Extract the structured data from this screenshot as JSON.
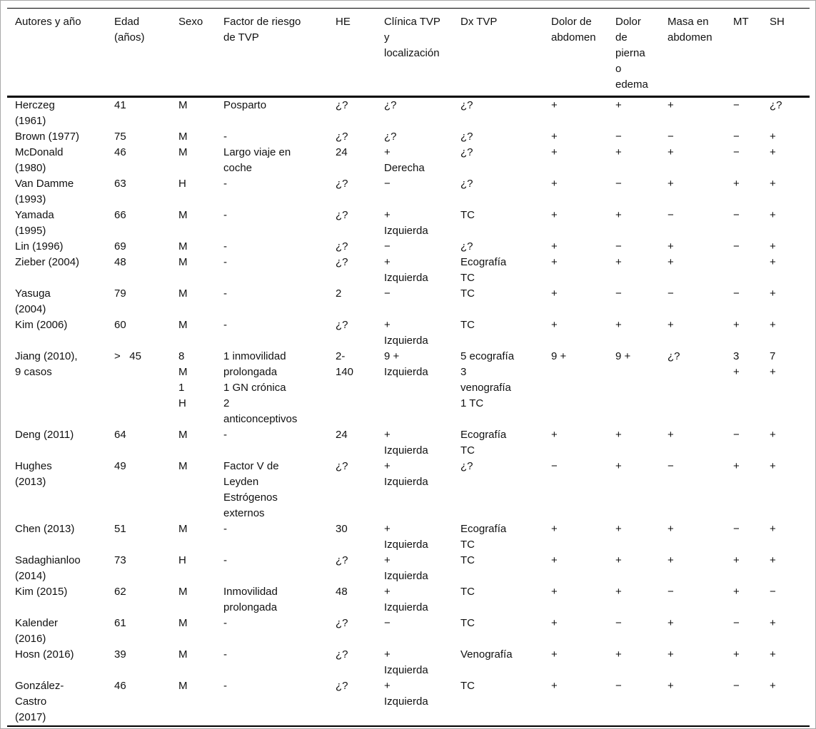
{
  "page": {
    "background_color": "#ffffff",
    "outer_border_color": "#a9a9a9",
    "rule_color": "#000000",
    "text_color": "#111111"
  },
  "table": {
    "columns": [
      {
        "label": "Autores y año"
      },
      {
        "label": "Edad\n(años)"
      },
      {
        "label": "Sexo"
      },
      {
        "label": "Factor de riesgo\nde TVP"
      },
      {
        "label": "HE"
      },
      {
        "label": "Clínica TVP\ny\nlocalización"
      },
      {
        "label": "Dx TVP"
      },
      {
        "label": "Dolor de\nabdomen"
      },
      {
        "label": "Dolor\nde\npierna\no\nedema"
      },
      {
        "label": "Masa en\nabdomen"
      },
      {
        "label": "MT"
      },
      {
        "label": "SH"
      }
    ],
    "rows": [
      {
        "cells": [
          "Herczeg\n(1961)",
          "41",
          "M",
          "Posparto",
          "¿?",
          "¿?",
          "¿?",
          "+",
          "+",
          "+",
          "−",
          "¿?"
        ]
      },
      {
        "cells": [
          "Brown (1977)",
          "75",
          "M",
          "-",
          "¿?",
          "¿?",
          "¿?",
          "+",
          "−",
          "−",
          "−",
          "+"
        ]
      },
      {
        "cells": [
          "McDonald\n(1980)",
          "46",
          "M",
          "Largo viaje en\ncoche",
          "24",
          "+\nDerecha",
          "¿?",
          "+",
          "+",
          "+",
          "−",
          "+"
        ]
      },
      {
        "cells": [
          "Van Damme\n(1993)",
          "63",
          "H",
          "-",
          "¿?",
          "−",
          "¿?",
          "+",
          "−",
          "+",
          "+",
          "+"
        ]
      },
      {
        "cells": [
          "Yamada\n(1995)",
          "66",
          "M",
          "-",
          "¿?",
          "+\nIzquierda",
          "TC",
          "+",
          "+",
          "−",
          "−",
          "+"
        ]
      },
      {
        "cells": [
          "Lin (1996)",
          "69",
          "M",
          "-",
          "¿?",
          "−",
          "¿?",
          "+",
          "−",
          "+",
          "−",
          "+"
        ]
      },
      {
        "cells": [
          "Zieber (2004)",
          "48",
          "M",
          "-",
          "¿?",
          "+\nIzquierda",
          "Ecografía\nTC",
          "+",
          "+",
          "+",
          "",
          "+"
        ]
      },
      {
        "cells": [
          "Yasuga\n(2004)",
          "79",
          "M",
          "-",
          "2",
          "−",
          "TC",
          "+",
          "−",
          "−",
          "−",
          "+"
        ]
      },
      {
        "cells": [
          "Kim (2006)",
          "60",
          "M",
          "-",
          "¿?",
          "+\nIzquierda",
          "TC",
          "+",
          "+",
          "+",
          "+",
          "+"
        ]
      },
      {
        "cells": [
          "Jiang (2010),\n9 casos",
          ">   45",
          "8\nM\n1\nH",
          "1 inmovilidad\nprolongada\n1 GN crónica\n2\nanticonceptivos",
          "2-\n140",
          "9 +\nIzquierda",
          "5 ecografía\n3\nvenografía\n1 TC",
          "9 +",
          "9 +",
          "¿?",
          "3\n+",
          "7\n+"
        ]
      },
      {
        "cells": [
          "Deng (2011)",
          "64",
          "M",
          "-",
          "24",
          "+\nIzquierda",
          "Ecografía\nTC",
          "+",
          "+",
          "+",
          "−",
          "+"
        ]
      },
      {
        "cells": [
          "Hughes\n(2013)",
          "49",
          "M",
          "Factor V de\nLeyden\nEstrógenos\nexternos",
          "¿?",
          "+\nIzquierda",
          "¿?",
          "−",
          "+",
          "−",
          "+",
          "+"
        ]
      },
      {
        "cells": [
          "Chen (2013)",
          "51",
          "M",
          "-",
          "30",
          "+\nIzquierda",
          "Ecografía\nTC",
          "+",
          "+",
          "+",
          "−",
          "+"
        ]
      },
      {
        "cells": [
          "Sadaghianloo\n(2014)",
          "73",
          "H",
          "-",
          "¿?",
          "+\nIzquierda",
          "TC",
          "+",
          "+",
          "+",
          "+",
          "+"
        ]
      },
      {
        "cells": [
          "Kim (2015)",
          "62",
          "M",
          "Inmovilidad\nprolongada",
          "48",
          "+\nIzquierda",
          "TC",
          "+",
          "+",
          "−",
          "+",
          "−"
        ]
      },
      {
        "cells": [
          "Kalender\n(2016)",
          "61",
          "M",
          "-",
          "¿?",
          "−",
          "TC",
          "+",
          "−",
          "+",
          "−",
          "+"
        ]
      },
      {
        "cells": [
          "Hosn (2016)",
          "39",
          "M",
          "-",
          "¿?",
          "+\nIzquierda",
          "Venografía",
          "+",
          "+",
          "+",
          "+",
          "+"
        ]
      },
      {
        "cells": [
          "González-\nCastro\n(2017)",
          "46",
          "M",
          "-",
          "¿?",
          "+\nIzquierda",
          "TC",
          "+",
          "−",
          "+",
          "−",
          "+"
        ]
      }
    ]
  }
}
